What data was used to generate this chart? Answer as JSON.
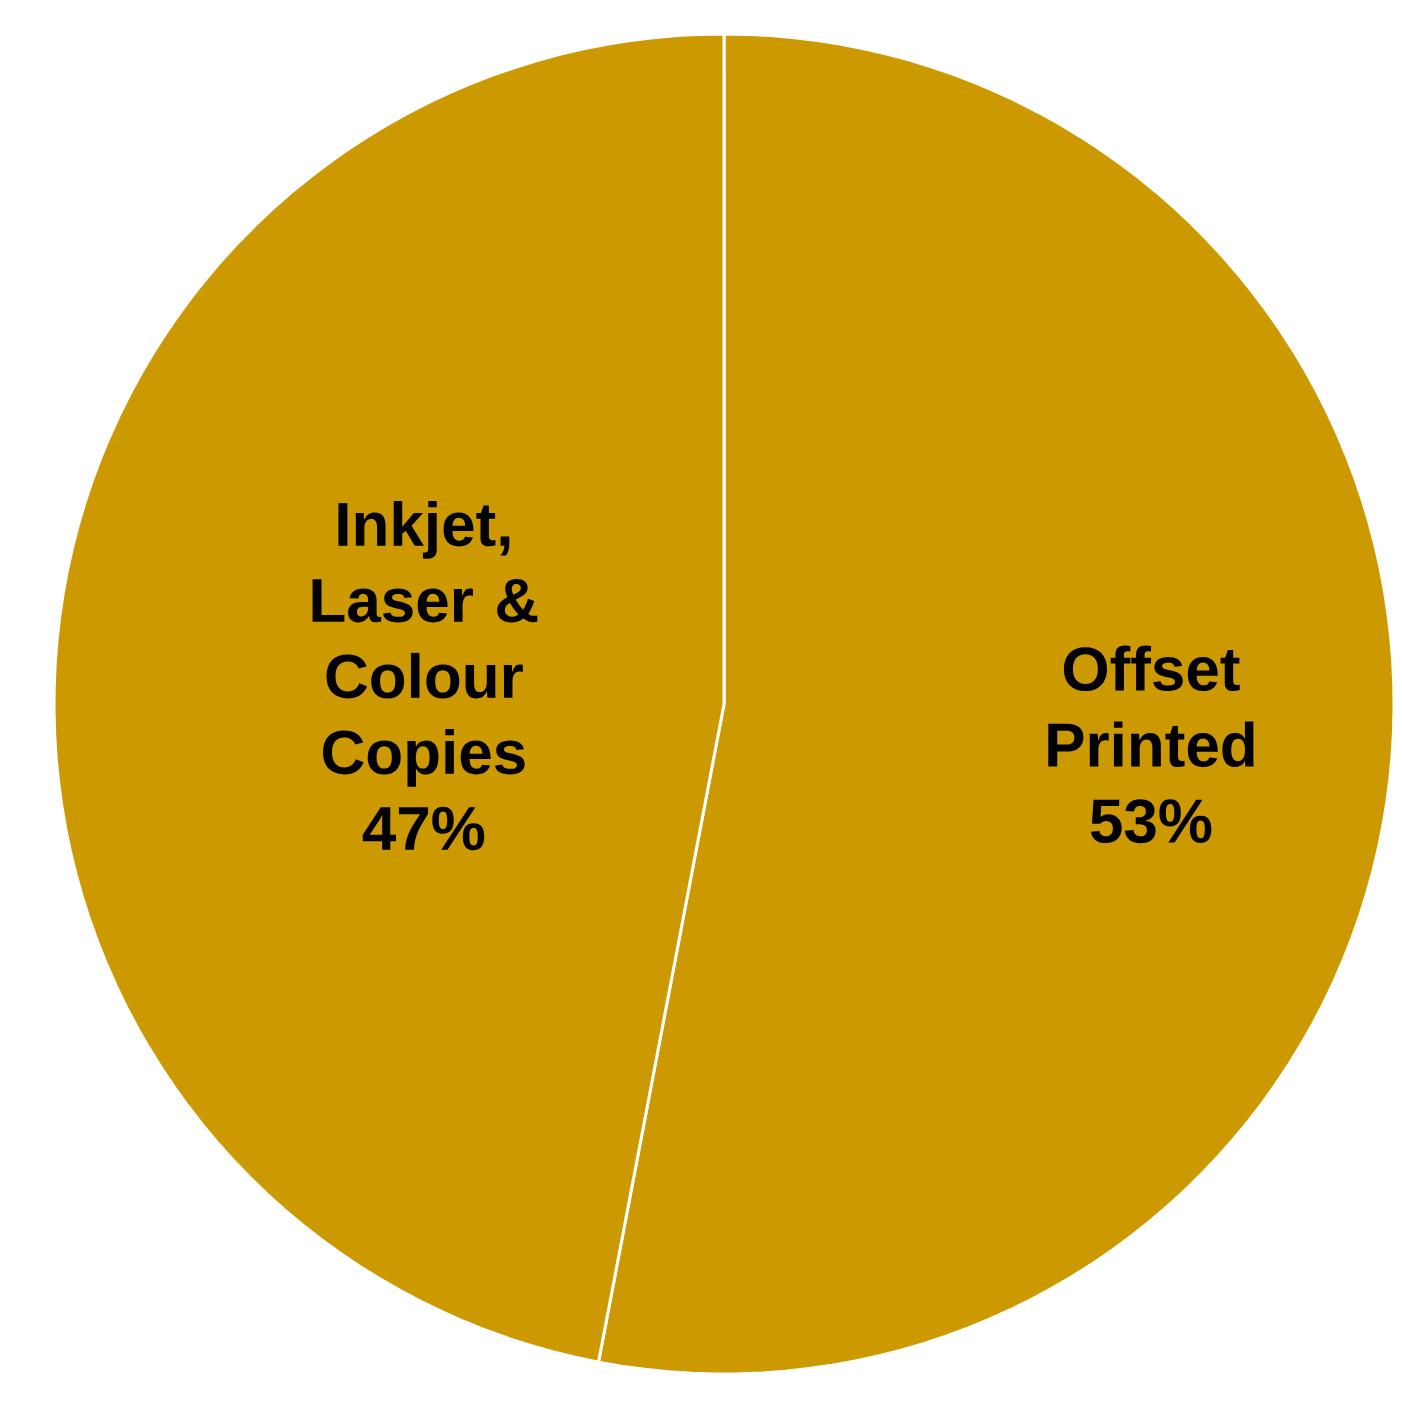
{
  "chart_data": {
    "type": "pie",
    "categories": [
      "Offset Printed",
      "Inkjet, Laser & Colour Copies"
    ],
    "values": [
      53,
      47
    ],
    "value_labels": [
      "53%",
      "47%"
    ],
    "colors": [
      "#cc9900",
      "#cc9900"
    ]
  }
}
